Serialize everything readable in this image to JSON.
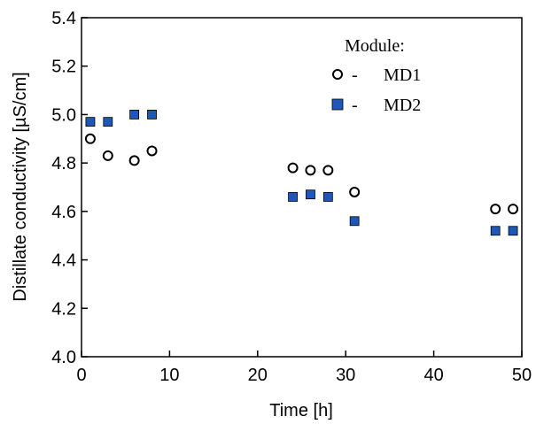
{
  "chart_data": {
    "type": "scatter",
    "xlabel": "Time [h]",
    "ylabel": "Distillate conductivity [µS/cm]",
    "xlim": [
      0,
      50
    ],
    "ylim": [
      4.0,
      5.4
    ],
    "xticks": [
      0,
      10,
      20,
      30,
      40,
      50
    ],
    "xtick_labels": [
      "0",
      "10",
      "20",
      "30",
      "40",
      "50"
    ],
    "yticks": [
      4.0,
      4.2,
      4.4,
      4.6,
      4.8,
      5.0,
      5.2,
      5.4
    ],
    "ytick_labels": [
      "4.0",
      "4.2",
      "4.4",
      "4.6",
      "4.8",
      "5.0",
      "5.2",
      "5.4"
    ],
    "grid": false,
    "legend": {
      "title": "Module:",
      "placement": "top-right",
      "entries": [
        {
          "marker_label": "○ -",
          "name": "MD1"
        },
        {
          "marker_label": "■ -",
          "name": "MD2"
        }
      ]
    },
    "series": [
      {
        "name": "MD1",
        "marker": "open-circle",
        "color": "#000000",
        "points": [
          [
            1,
            4.9
          ],
          [
            3,
            4.83
          ],
          [
            6,
            4.81
          ],
          [
            8,
            4.85
          ],
          [
            24,
            4.78
          ],
          [
            26,
            4.77
          ],
          [
            28,
            4.77
          ],
          [
            31,
            4.68
          ],
          [
            47,
            4.61
          ],
          [
            49,
            4.61
          ]
        ]
      },
      {
        "name": "MD2",
        "marker": "filled-square",
        "color": "#1f57b8",
        "points": [
          [
            1,
            4.97
          ],
          [
            3,
            4.97
          ],
          [
            6,
            5.0
          ],
          [
            8,
            5.0
          ],
          [
            24,
            4.66
          ],
          [
            26,
            4.67
          ],
          [
            28,
            4.66
          ],
          [
            31,
            4.56
          ],
          [
            47,
            4.52
          ],
          [
            49,
            4.52
          ]
        ]
      }
    ]
  }
}
